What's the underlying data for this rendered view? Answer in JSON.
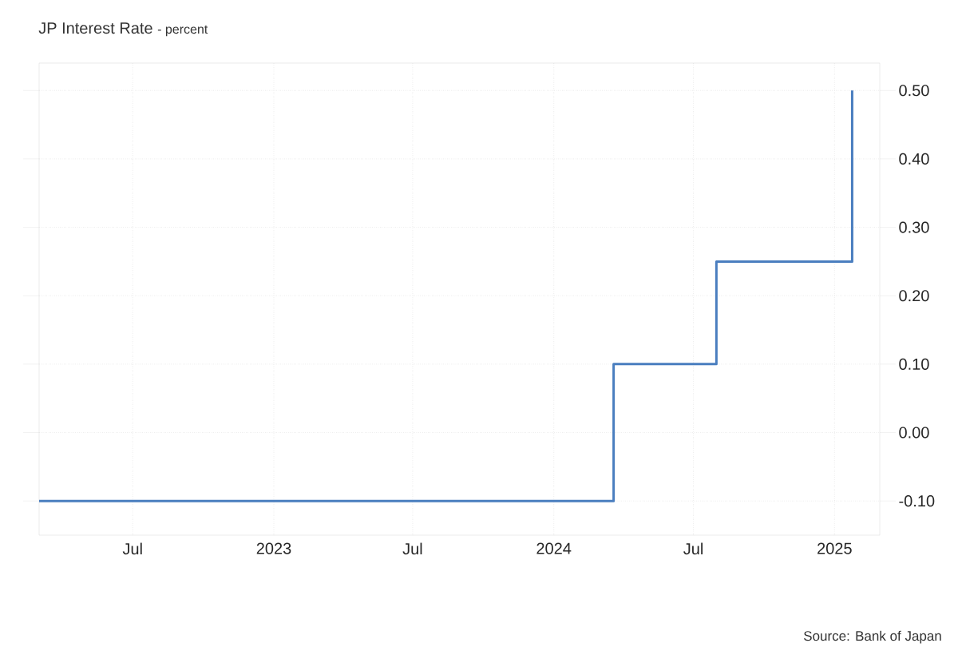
{
  "chart_data": {
    "type": "step",
    "title": "JP Interest Rate",
    "subtitle": "- percent",
    "x": [
      "2022-03-01",
      "2024-03-19",
      "2024-07-31",
      "2025-01-24"
    ],
    "values": [
      -0.1,
      0.1,
      0.25,
      0.5
    ],
    "color": "#4a7ebf",
    "xlim": [
      "2022-03-01",
      "2025-03-01"
    ],
    "xticks": [
      {
        "value": "2022-07-01",
        "label": "Jul"
      },
      {
        "value": "2023-01-01",
        "label": "2023"
      },
      {
        "value": "2023-07-01",
        "label": "Jul"
      },
      {
        "value": "2024-01-01",
        "label": "2024"
      },
      {
        "value": "2024-07-01",
        "label": "Jul"
      },
      {
        "value": "2025-01-01",
        "label": "2025"
      }
    ],
    "ylim": [
      -0.15,
      0.54
    ],
    "yticks": [
      {
        "value": -0.1,
        "label": "-0.10"
      },
      {
        "value": 0.0,
        "label": "0.00"
      },
      {
        "value": 0.1,
        "label": "0.10"
      },
      {
        "value": 0.2,
        "label": "0.20"
      },
      {
        "value": 0.3,
        "label": "0.30"
      },
      {
        "value": 0.4,
        "label": "0.40"
      },
      {
        "value": 0.5,
        "label": "0.50"
      }
    ],
    "grid": true,
    "line_style": "solid",
    "marker": "none",
    "annotations": [
      "Source: Bank of Japan"
    ]
  }
}
